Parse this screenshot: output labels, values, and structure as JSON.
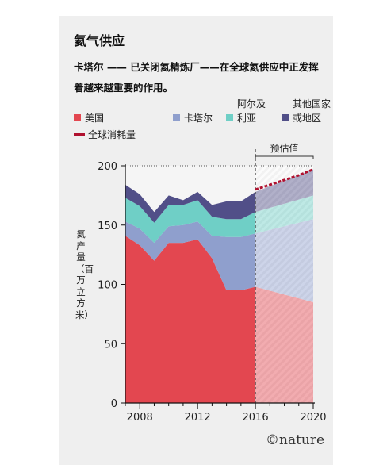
{
  "title": "氦气供应",
  "subtitle": "卡塔尔 —— 已关闭氦精炼厂——在全球氦供应中正发挥着越来越重要的作用。",
  "legend": [
    {
      "label": "美国",
      "color": "#e34750"
    },
    {
      "label": "卡塔尔",
      "color": "#8f9fcd"
    },
    {
      "label": "阿尔及\n利亚",
      "color": "#6fcfc6"
    },
    {
      "label": "其他国家\n或地区",
      "color": "#514f88"
    },
    {
      "label": "全球消耗量",
      "color": "#b0112f"
    }
  ],
  "ylabel": "氦产量（百万立方米）",
  "estimate_label": "预估值",
  "credit": "©nature",
  "chart_data": {
    "type": "area",
    "stacked": true,
    "x": [
      2007,
      2008,
      2009,
      2010,
      2011,
      2012,
      2013,
      2014,
      2015,
      2016,
      2020
    ],
    "xticks": [
      2008,
      2012,
      2016,
      2020
    ],
    "yticks": [
      0,
      50,
      100,
      150,
      200
    ],
    "xlim": [
      2007,
      2020
    ],
    "ylim": [
      0,
      200
    ],
    "estimate_from": 2016,
    "series": [
      {
        "name": "美国",
        "color": "#e34750",
        "values": [
          141,
          133,
          120,
          135,
          135,
          138,
          122,
          95,
          95,
          98,
          85
        ]
      },
      {
        "name": "卡塔尔",
        "color": "#8f9fcd",
        "values": [
          12,
          14,
          15,
          14,
          15,
          15,
          19,
          45,
          45,
          45,
          70
        ]
      },
      {
        "name": "阿尔及利亚",
        "color": "#6fcfc6",
        "values": [
          20,
          19,
          17,
          18,
          17,
          18,
          16,
          15,
          15,
          18,
          20
        ]
      },
      {
        "name": "其他国家或地区",
        "color": "#514f88",
        "values": [
          11,
          10,
          9,
          8,
          4,
          7,
          10,
          15,
          15,
          17,
          22
        ]
      }
    ],
    "consumption": {
      "name": "全球消耗量",
      "color": "#b0112f",
      "x": [
        2016,
        2017,
        2018,
        2019,
        2020
      ],
      "values": [
        180,
        184,
        188,
        192,
        197
      ]
    }
  }
}
